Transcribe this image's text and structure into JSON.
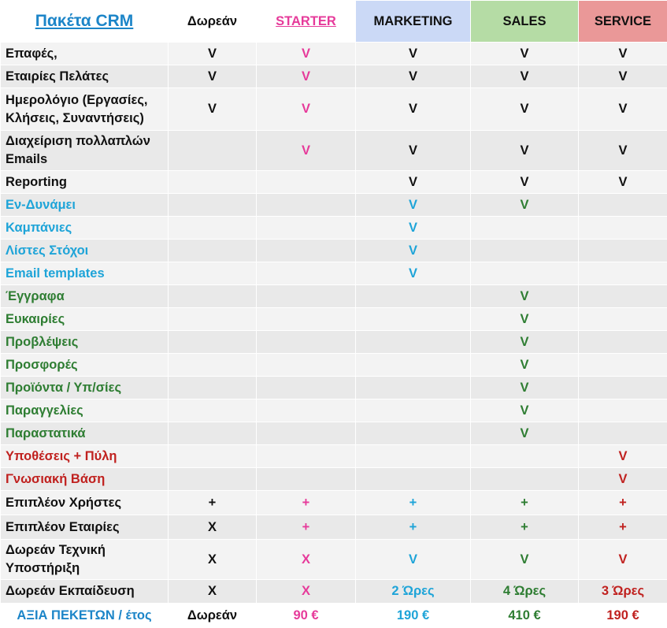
{
  "header": {
    "title": "Πακέτα CRM",
    "columns": [
      {
        "label": "Δωρεάν",
        "color": "#111111",
        "bg": "#ffffff"
      },
      {
        "label": "STARTER",
        "color": "#e63a9a",
        "bg": "#ffffff"
      },
      {
        "label": "MARKETING",
        "color": "#111111",
        "bg": "#cbd9f6"
      },
      {
        "label": "SALES",
        "color": "#111111",
        "bg": "#b5dca5"
      },
      {
        "label": "SERVICE",
        "color": "#111111",
        "bg": "#ea9898"
      }
    ]
  },
  "colors": {
    "black": "#111111",
    "pink": "#e63a9a",
    "blue": "#1ea4d8",
    "green": "#2e7d32",
    "red": "#c0211f"
  },
  "rows": [
    {
      "label": "Επαφές,",
      "label_color": "#111111",
      "height": 29,
      "cells": [
        {
          "v": "V",
          "c": "#111111"
        },
        {
          "v": "V",
          "c": "#e63a9a"
        },
        {
          "v": "V",
          "c": "#111111"
        },
        {
          "v": "V",
          "c": "#111111"
        },
        {
          "v": "V",
          "c": "#111111"
        }
      ]
    },
    {
      "label": "Εταιρίες Πελάτες",
      "label_color": "#111111",
      "height": 29,
      "cells": [
        {
          "v": "V",
          "c": "#111111"
        },
        {
          "v": "V",
          "c": "#e63a9a"
        },
        {
          "v": "V",
          "c": "#111111"
        },
        {
          "v": "V",
          "c": "#111111"
        },
        {
          "v": "V",
          "c": "#111111"
        }
      ]
    },
    {
      "label": "Ημερολόγιο (Εργασίες, Κλήσεις, Συναντήσεις)",
      "label_color": "#111111",
      "height": 54,
      "cells": [
        {
          "v": "V",
          "c": "#111111"
        },
        {
          "v": "V",
          "c": "#e63a9a"
        },
        {
          "v": "V",
          "c": "#111111"
        },
        {
          "v": "V",
          "c": "#111111"
        },
        {
          "v": "V",
          "c": "#111111"
        }
      ]
    },
    {
      "label": "Διαχείριση πολλαπλών Emails",
      "label_color": "#111111",
      "height": 51,
      "cells": [
        {
          "v": "",
          "c": "#111111"
        },
        {
          "v": "V",
          "c": "#e63a9a"
        },
        {
          "v": "V",
          "c": "#111111"
        },
        {
          "v": "V",
          "c": "#111111"
        },
        {
          "v": "V",
          "c": "#111111"
        }
      ]
    },
    {
      "label": "Reporting",
      "label_color": "#111111",
      "height": 29,
      "cells": [
        {
          "v": "",
          "c": "#111111"
        },
        {
          "v": "",
          "c": "#e63a9a"
        },
        {
          "v": "V",
          "c": "#111111"
        },
        {
          "v": "V",
          "c": "#111111"
        },
        {
          "v": "V",
          "c": "#111111"
        }
      ]
    },
    {
      "label": "Εν-Δυνάμει",
      "label_color": "#1ea4d8",
      "height": 29,
      "cells": [
        {
          "v": "",
          "c": "#111111"
        },
        {
          "v": "",
          "c": "#e63a9a"
        },
        {
          "v": "V",
          "c": "#1ea4d8"
        },
        {
          "v": "V",
          "c": "#2e7d32"
        },
        {
          "v": "",
          "c": "#111111"
        }
      ]
    },
    {
      "label": "Καμπάνιες",
      "label_color": "#1ea4d8",
      "height": 29,
      "cells": [
        {
          "v": "",
          "c": "#111111"
        },
        {
          "v": "",
          "c": "#e63a9a"
        },
        {
          "v": "V",
          "c": "#1ea4d8"
        },
        {
          "v": "",
          "c": "#2e7d32"
        },
        {
          "v": "",
          "c": "#111111"
        }
      ]
    },
    {
      "label": "Λίστες Στόχοι",
      "label_color": "#1ea4d8",
      "height": 29,
      "cells": [
        {
          "v": "",
          "c": "#111111"
        },
        {
          "v": "",
          "c": "#e63a9a"
        },
        {
          "v": "V",
          "c": "#1ea4d8"
        },
        {
          "v": "",
          "c": "#2e7d32"
        },
        {
          "v": "",
          "c": "#111111"
        }
      ]
    },
    {
      "label": "Email templates",
      "label_color": "#1ea4d8",
      "height": 29,
      "cells": [
        {
          "v": "",
          "c": "#111111"
        },
        {
          "v": "",
          "c": "#e63a9a"
        },
        {
          "v": "V",
          "c": "#1ea4d8"
        },
        {
          "v": "",
          "c": "#2e7d32"
        },
        {
          "v": "",
          "c": "#111111"
        }
      ]
    },
    {
      "label": "Έγγραφα",
      "label_color": "#2e7d32",
      "height": 29,
      "cells": [
        {
          "v": "",
          "c": "#111111"
        },
        {
          "v": "",
          "c": "#e63a9a"
        },
        {
          "v": "",
          "c": "#1ea4d8"
        },
        {
          "v": "V",
          "c": "#2e7d32"
        },
        {
          "v": "",
          "c": "#111111"
        }
      ]
    },
    {
      "label": "Ευκαιρίες",
      "label_color": "#2e7d32",
      "height": 29,
      "cells": [
        {
          "v": "",
          "c": "#111111"
        },
        {
          "v": "",
          "c": "#e63a9a"
        },
        {
          "v": "",
          "c": "#1ea4d8"
        },
        {
          "v": "V",
          "c": "#2e7d32"
        },
        {
          "v": "",
          "c": "#111111"
        }
      ]
    },
    {
      "label": "Προβλέψεις",
      "label_color": "#2e7d32",
      "height": 29,
      "cells": [
        {
          "v": "",
          "c": "#111111"
        },
        {
          "v": "",
          "c": "#e63a9a"
        },
        {
          "v": "",
          "c": "#1ea4d8"
        },
        {
          "v": "V",
          "c": "#2e7d32"
        },
        {
          "v": "",
          "c": "#111111"
        }
      ]
    },
    {
      "label": "Προσφορές",
      "label_color": "#2e7d32",
      "height": 29,
      "cells": [
        {
          "v": "",
          "c": "#111111"
        },
        {
          "v": "",
          "c": "#e63a9a"
        },
        {
          "v": "",
          "c": "#1ea4d8"
        },
        {
          "v": "V",
          "c": "#2e7d32"
        },
        {
          "v": "",
          "c": "#111111"
        }
      ]
    },
    {
      "label": "Προϊόντα / Υπ/σίες",
      "label_color": "#2e7d32",
      "height": 29,
      "cells": [
        {
          "v": "",
          "c": "#111111"
        },
        {
          "v": "",
          "c": "#e63a9a"
        },
        {
          "v": "",
          "c": "#1ea4d8"
        },
        {
          "v": "V",
          "c": "#2e7d32"
        },
        {
          "v": "",
          "c": "#111111"
        }
      ]
    },
    {
      "label": "Παραγγελίες",
      "label_color": "#2e7d32",
      "height": 29,
      "cells": [
        {
          "v": "",
          "c": "#111111"
        },
        {
          "v": "",
          "c": "#e63a9a"
        },
        {
          "v": "",
          "c": "#1ea4d8"
        },
        {
          "v": "V",
          "c": "#2e7d32"
        },
        {
          "v": "",
          "c": "#111111"
        }
      ]
    },
    {
      "label": "Παραστατικά",
      "label_color": "#2e7d32",
      "height": 29,
      "cells": [
        {
          "v": "",
          "c": "#111111"
        },
        {
          "v": "",
          "c": "#e63a9a"
        },
        {
          "v": "",
          "c": "#1ea4d8"
        },
        {
          "v": "V",
          "c": "#2e7d32"
        },
        {
          "v": "",
          "c": "#111111"
        }
      ]
    },
    {
      "label": "Υποθέσεις + Πύλη",
      "label_color": "#c0211f",
      "height": 29,
      "cells": [
        {
          "v": "",
          "c": "#111111"
        },
        {
          "v": "",
          "c": "#e63a9a"
        },
        {
          "v": "",
          "c": "#1ea4d8"
        },
        {
          "v": "",
          "c": "#2e7d32"
        },
        {
          "v": "V",
          "c": "#c0211f"
        }
      ]
    },
    {
      "label": "Γνωσιακή Βάση",
      "label_color": "#c0211f",
      "height": 29,
      "cells": [
        {
          "v": "",
          "c": "#111111"
        },
        {
          "v": "",
          "c": "#e63a9a"
        },
        {
          "v": "",
          "c": "#1ea4d8"
        },
        {
          "v": "",
          "c": "#2e7d32"
        },
        {
          "v": "V",
          "c": "#c0211f"
        }
      ]
    },
    {
      "label": "Επιπλέον Χρήστες",
      "label_color": "#111111",
      "height": 31,
      "cells": [
        {
          "v": "+",
          "c": "#111111"
        },
        {
          "v": "+",
          "c": "#e63a9a"
        },
        {
          "v": "+",
          "c": "#1ea4d8"
        },
        {
          "v": "+",
          "c": "#2e7d32"
        },
        {
          "v": "+",
          "c": "#c0211f"
        }
      ]
    },
    {
      "label": "Επιπλέον Εταιρίες",
      "label_color": "#111111",
      "height": 31,
      "cells": [
        {
          "v": "X",
          "c": "#111111"
        },
        {
          "v": "+",
          "c": "#e63a9a"
        },
        {
          "v": "+",
          "c": "#1ea4d8"
        },
        {
          "v": "+",
          "c": "#2e7d32"
        },
        {
          "v": "+",
          "c": "#c0211f"
        }
      ]
    },
    {
      "label": "Δωρεάν Τεχνική Υποστήριξη",
      "label_color": "#111111",
      "height": 51,
      "cells": [
        {
          "v": "X",
          "c": "#111111"
        },
        {
          "v": "X",
          "c": "#e63a9a"
        },
        {
          "v": "V",
          "c": "#1ea4d8"
        },
        {
          "v": "V",
          "c": "#2e7d32"
        },
        {
          "v": "V",
          "c": "#c0211f"
        }
      ]
    },
    {
      "label": "Δωρεάν Εκπαίδευση",
      "label_color": "#111111",
      "height": 30,
      "cells": [
        {
          "v": "X",
          "c": "#111111"
        },
        {
          "v": "X",
          "c": "#e63a9a"
        },
        {
          "v": "2 Ώρες",
          "c": "#1ea4d8"
        },
        {
          "v": "4 Ώρες",
          "c": "#2e7d32"
        },
        {
          "v": "3 Ώρες",
          "c": "#c0211f"
        }
      ]
    }
  ],
  "footer": {
    "label": "ΑΞΙΑ ΠΕΚΕΤΩΝ / έτος",
    "label_color": "#1c85c8",
    "cells": [
      {
        "v": "Δωρεάν",
        "c": "#111111"
      },
      {
        "v": "90 €",
        "c": "#e63a9a"
      },
      {
        "v": "190 €",
        "c": "#1ea4d8"
      },
      {
        "v": "410 €",
        "c": "#2e7d32"
      },
      {
        "v": "190 €",
        "c": "#c0211f"
      }
    ]
  }
}
